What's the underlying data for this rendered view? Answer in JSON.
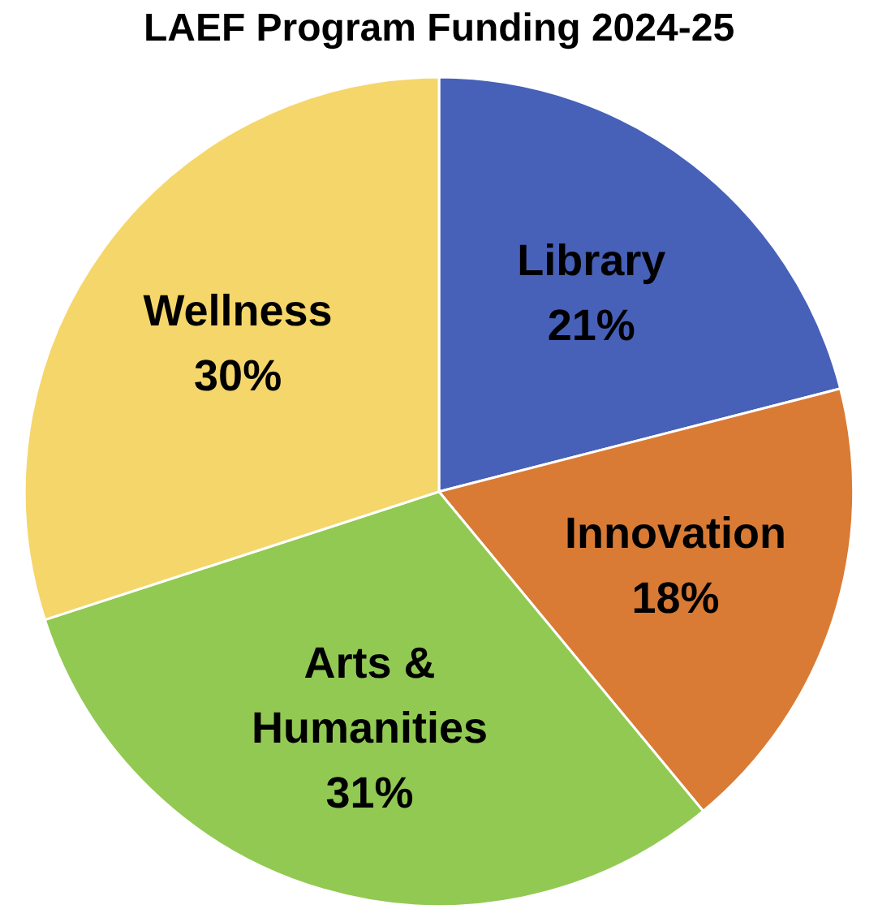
{
  "chart_data": {
    "type": "pie",
    "title": "LAEF Program Funding 2024-25",
    "categories": [
      "Library",
      "Innovation",
      "Arts & Humanities",
      "Wellness"
    ],
    "values": [
      21,
      18,
      31,
      30
    ],
    "colors": [
      "#4760b8",
      "#d97b35",
      "#92c953",
      "#f5d66a"
    ],
    "value_labels": [
      "21%",
      "18%",
      "31%",
      "30%"
    ]
  }
}
